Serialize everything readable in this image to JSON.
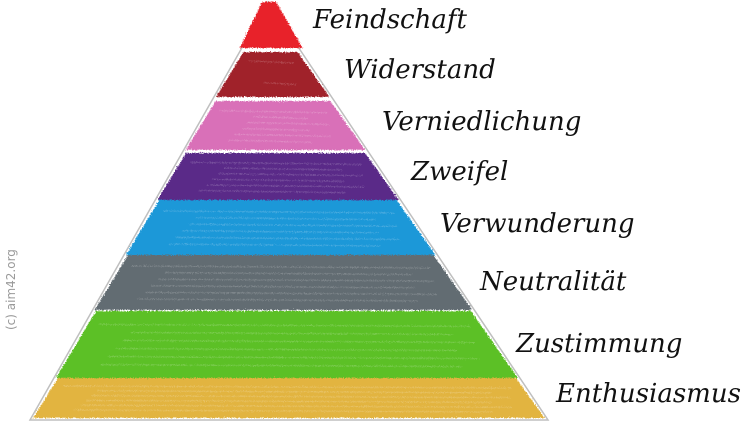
{
  "pyramid": {
    "layers": [
      {
        "label": "Feindschaft",
        "color": "#e8202a",
        "name": "layer-feindschaft"
      },
      {
        "label": "Widerstand",
        "color": "#a0202a",
        "name": "layer-widerstand"
      },
      {
        "label": "Verniedlichung",
        "color": "#d970b8",
        "name": "layer-verniedlichung"
      },
      {
        "label": "Zweifel",
        "color": "#5a2a88",
        "name": "layer-zweifel"
      },
      {
        "label": "Verwunderung",
        "color": "#1e98d8",
        "name": "layer-verwunderung"
      },
      {
        "label": "Neutralität",
        "color": "#626c72",
        "name": "layer-neutralitaet"
      },
      {
        "label": "Zustimmung",
        "color": "#5cc026",
        "name": "layer-zustimmung"
      },
      {
        "label": "Enthusiasmus",
        "color": "#e2b440",
        "name": "layer-enthusiasmus"
      }
    ],
    "outline_color": "#bfbfbf"
  },
  "copyright": "(c) aim42.org"
}
